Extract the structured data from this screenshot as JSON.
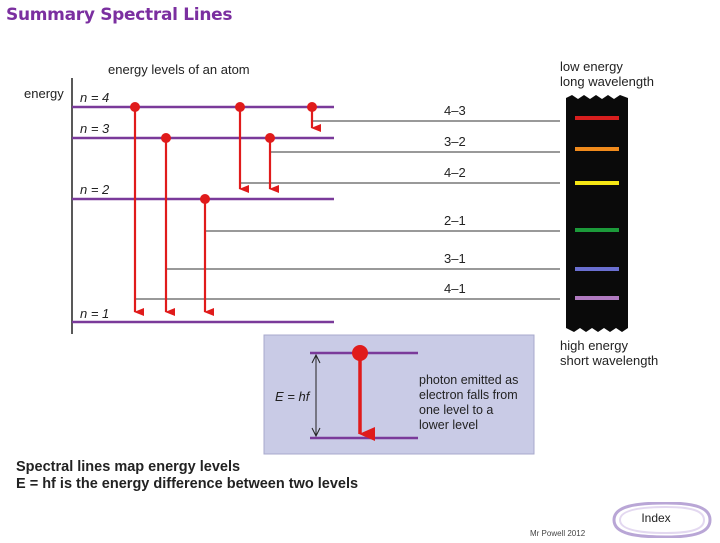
{
  "title": "Summary Spectral Lines",
  "diagram": {
    "heading": "energy levels of an atom",
    "axis_label": "energy",
    "levels": [
      "n = 4",
      "n = 3",
      "n = 2",
      "n = 1"
    ],
    "transitions": [
      "4–3",
      "3–2",
      "4–2",
      "2–1",
      "3–1",
      "4–1"
    ],
    "spectrum_top_label": [
      "low energy",
      "long wavelength"
    ],
    "spectrum_bottom_label": [
      "high energy",
      "short wavelength"
    ],
    "spectrum_line_colors": [
      "#d81e1e",
      "#f08a1c",
      "#f5e614",
      "#1c9a3a",
      "#6a6fd0",
      "#b07ac0"
    ]
  },
  "inset": {
    "formula": "E = hf",
    "description": [
      "photon emitted as",
      "electron falls from",
      "one level to a",
      "lower level"
    ]
  },
  "caption": {
    "line1": "Spectral lines map energy levels",
    "line2": "E = hf is the energy difference between two levels"
  },
  "credit": "Mr Powell 2012",
  "index_label": "Index"
}
